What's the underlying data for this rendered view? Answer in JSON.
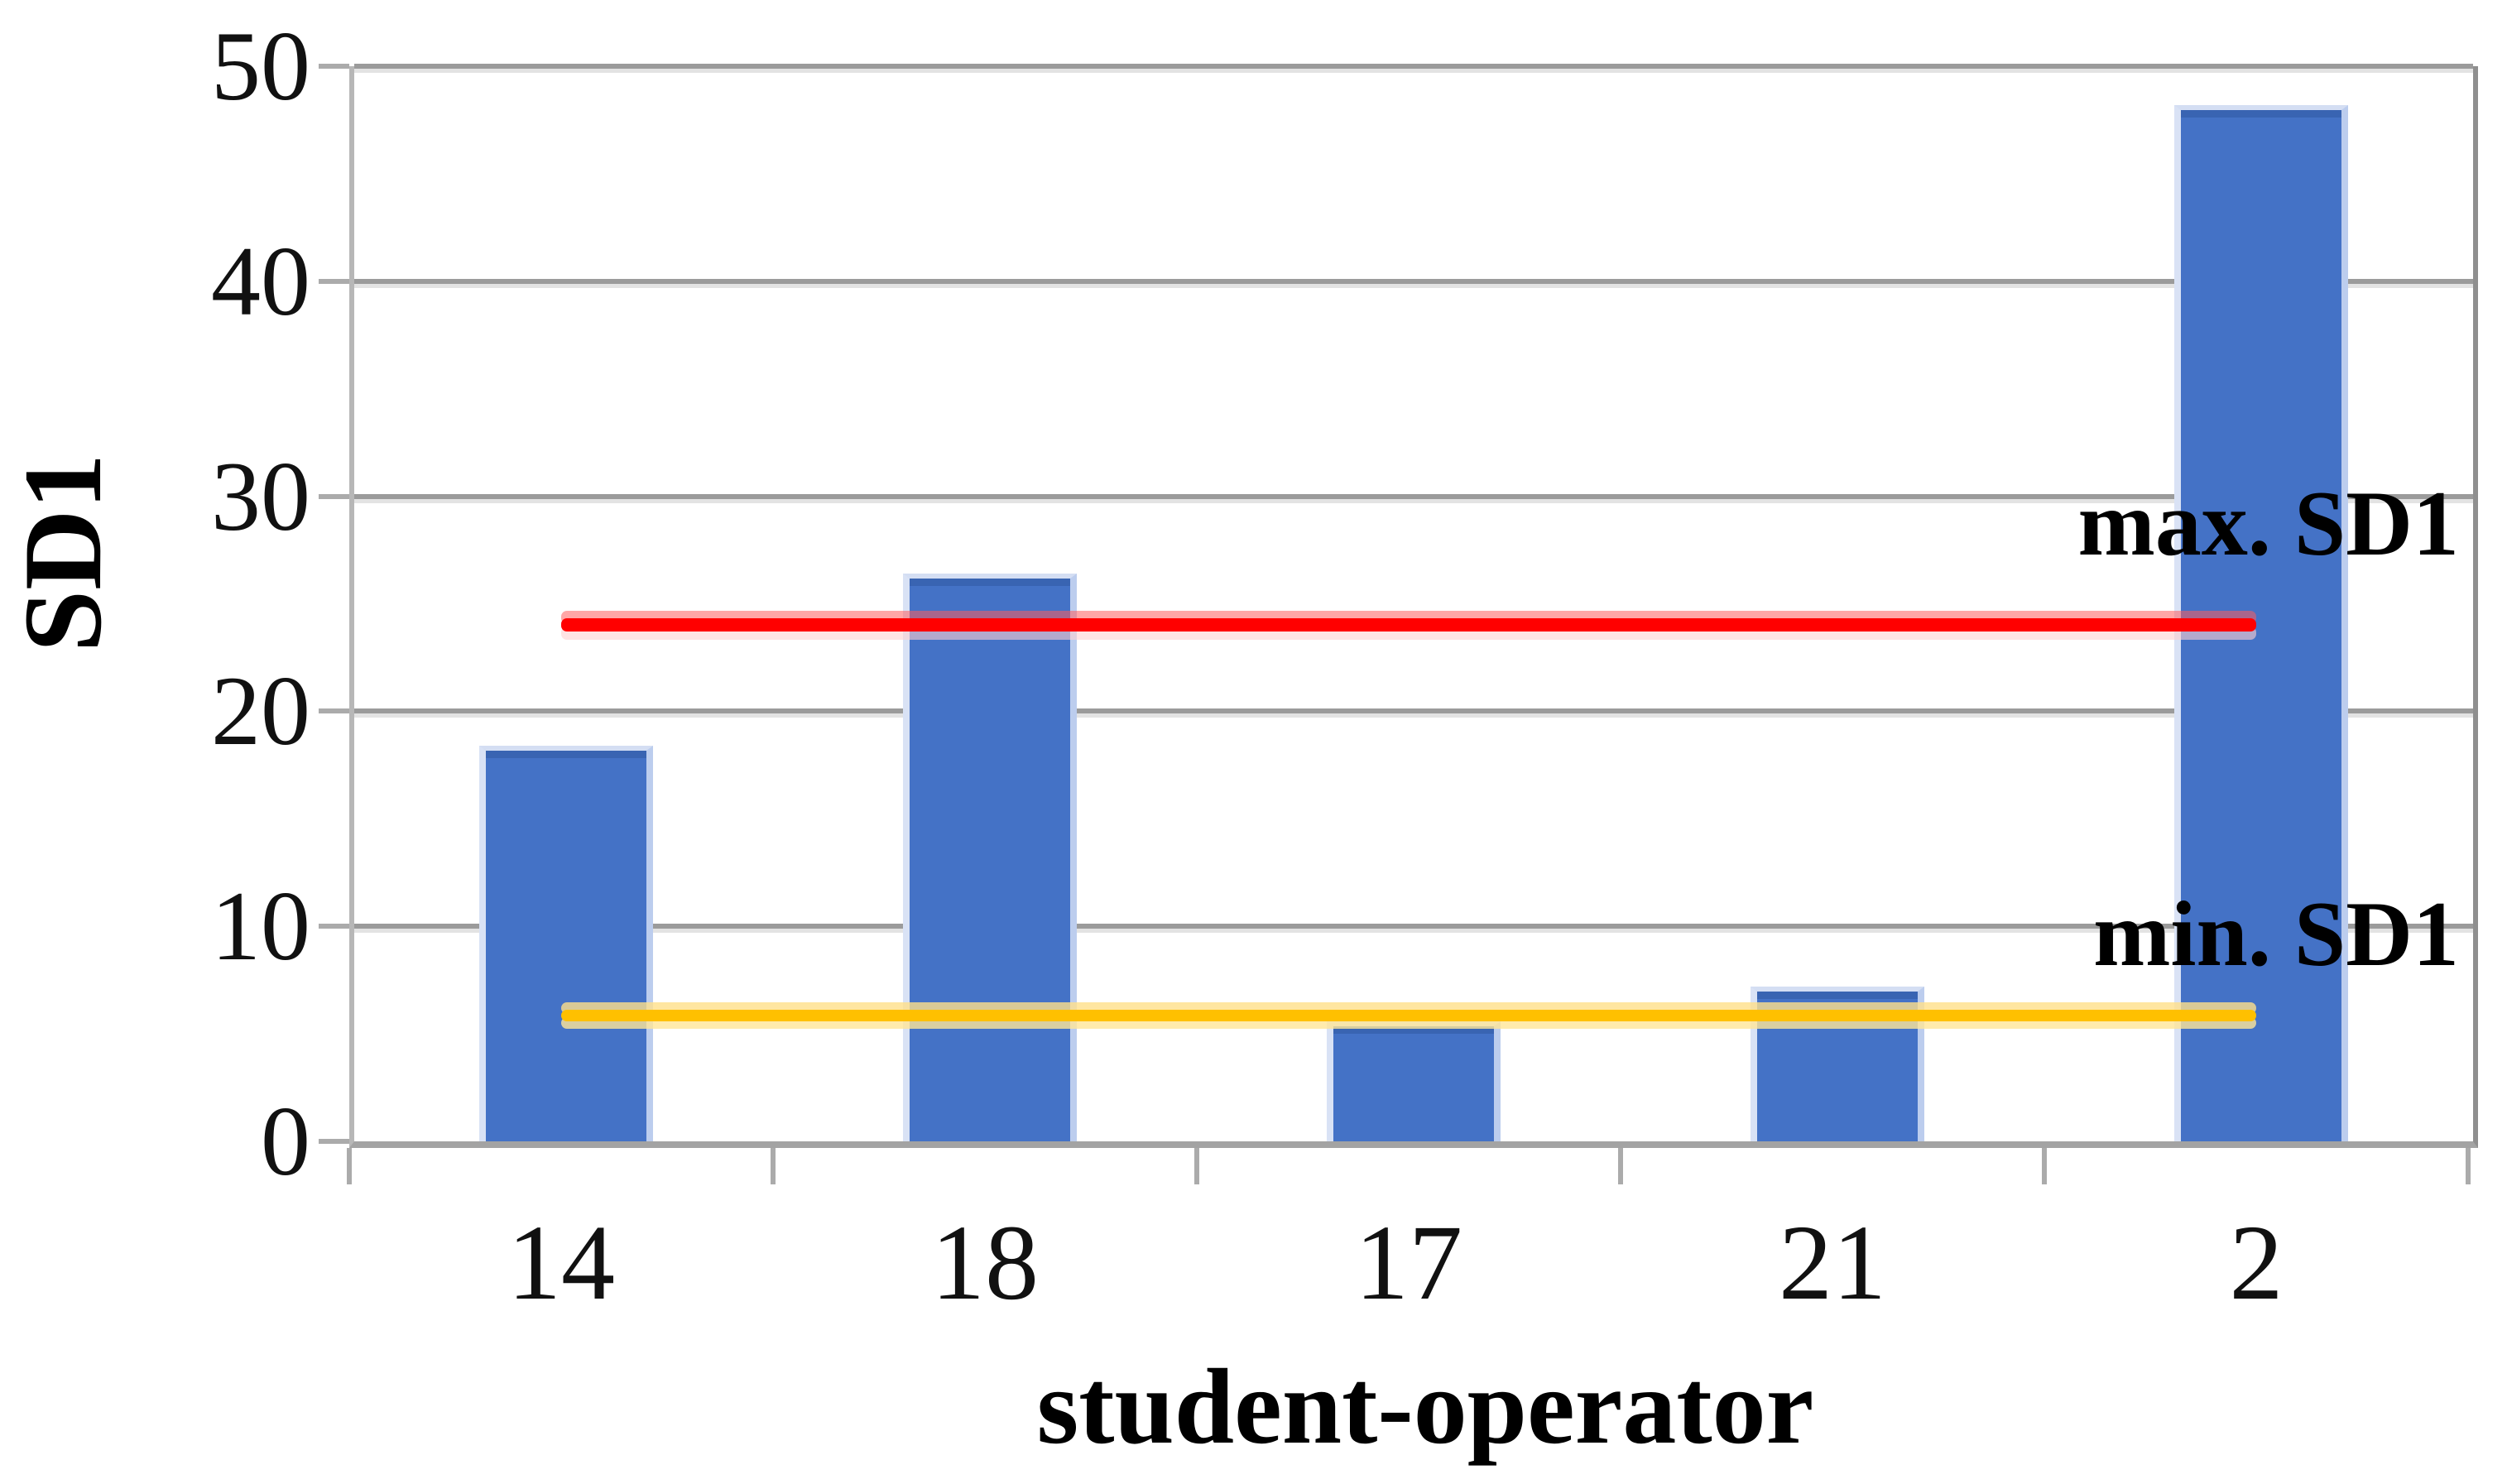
{
  "chart_data": {
    "type": "bar",
    "title": "",
    "categories": [
      "14",
      "18",
      "17",
      "21",
      "2"
    ],
    "series": [
      {
        "name": "SD1",
        "values": [
          18.4,
          26.4,
          5.6,
          7.2,
          48.2
        ]
      }
    ],
    "ref_lines": [
      {
        "label": "max. SD1",
        "value": 24,
        "color": "#ff0000",
        "kind": "max"
      },
      {
        "label": "min. SD1",
        "value": 5.8,
        "color": "#ffc000",
        "kind": "min"
      }
    ],
    "xlabel": "student-operator",
    "ylabel": "SD1",
    "ylim": [
      0,
      50
    ],
    "yticks": [
      0,
      10,
      20,
      30,
      40,
      50
    ],
    "grid": true,
    "legend": false
  },
  "colors": {
    "bar": "#4472c6",
    "max_line": "#ff0000",
    "min_line": "#ffc000",
    "gridline": "#9b9b9b",
    "axis": "#a3a3a3",
    "text": "#000000"
  }
}
